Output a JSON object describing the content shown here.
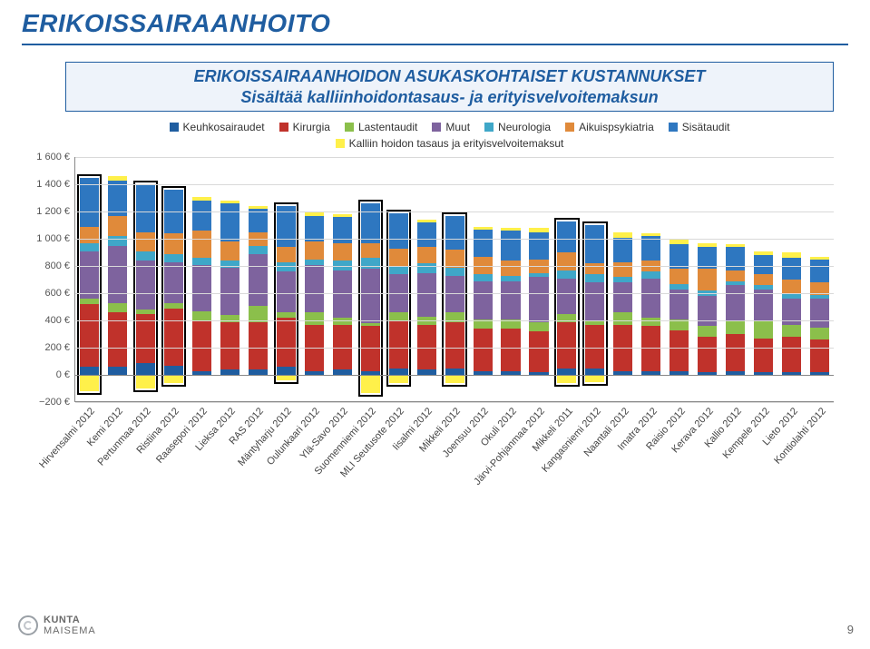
{
  "page": {
    "title": "ERIKOISSAIRAANHOITO",
    "number": "9",
    "brand_top": "KUNTA",
    "brand_bottom": "MAISEMA"
  },
  "chart": {
    "type": "stacked-bar",
    "title_line1": "ERIKOISSAIRAANHOIDON ASUKASKOHTAISET KUSTANNUKSET",
    "title_line2": "Sisältää kalliinhoidontasaus- ja erityisvelvoitemaksun",
    "ymin": -200,
    "ymax": 1600,
    "ytick_step": 200,
    "ysuffix": " €",
    "grid_color": "#d9d9d9",
    "background_color": "#ffffff",
    "legend": [
      {
        "key": "keuhko",
        "label": "Keuhkosairaudet",
        "color": "#1f5da0"
      },
      {
        "key": "kirurgia",
        "label": "Kirurgia",
        "color": "#c0322b"
      },
      {
        "key": "lasten",
        "label": "Lastentaudit",
        "color": "#8bbf4b"
      },
      {
        "key": "muut",
        "label": "Muut",
        "color": "#7e639e"
      },
      {
        "key": "neuro",
        "label": "Neurologia",
        "color": "#3fa7c8"
      },
      {
        "key": "aikuis",
        "label": "Aikuispsykiatria",
        "color": "#e08a3a"
      },
      {
        "key": "sisa",
        "label": "Sisätaudit",
        "color": "#2e77c0"
      },
      {
        "key": "tasaus",
        "label": "Kalliin hoidon tasaus ja erityisvelvoitemaksut",
        "color": "#fff04a"
      }
    ],
    "categories": [
      {
        "name": "Hirvensalmi 2012",
        "keuhko": 60,
        "kirurgia": 460,
        "lasten": 40,
        "muut": 350,
        "neuro": 60,
        "aikuis": 120,
        "sisa": 360,
        "tasaus": -120
      },
      {
        "name": "Kemi 2012",
        "keuhko": 60,
        "kirurgia": 400,
        "lasten": 70,
        "muut": 420,
        "neuro": 70,
        "aikuis": 150,
        "sisa": 260,
        "tasaus": 30
      },
      {
        "name": "Pertunmaa 2012",
        "keuhko": 90,
        "kirurgia": 360,
        "lasten": 30,
        "muut": 360,
        "neuro": 70,
        "aikuis": 140,
        "sisa": 350,
        "tasaus": -100
      },
      {
        "name": "Ristiina 2012",
        "keuhko": 70,
        "kirurgia": 420,
        "lasten": 40,
        "muut": 300,
        "neuro": 60,
        "aikuis": 150,
        "sisa": 320,
        "tasaus": -60
      },
      {
        "name": "Raasepori 2012",
        "keuhko": 30,
        "kirurgia": 370,
        "lasten": 70,
        "muut": 340,
        "neuro": 50,
        "aikuis": 200,
        "sisa": 220,
        "tasaus": 30
      },
      {
        "name": "Lieksa 2012",
        "keuhko": 40,
        "kirurgia": 350,
        "lasten": 50,
        "muut": 350,
        "neuro": 50,
        "aikuis": 140,
        "sisa": 280,
        "tasaus": 20
      },
      {
        "name": "RAS 2012",
        "keuhko": 40,
        "kirurgia": 350,
        "lasten": 120,
        "muut": 380,
        "neuro": 60,
        "aikuis": 100,
        "sisa": 170,
        "tasaus": 20
      },
      {
        "name": "Mäntyharju 2012",
        "keuhko": 60,
        "kirurgia": 360,
        "lasten": 40,
        "muut": 300,
        "neuro": 70,
        "aikuis": 110,
        "sisa": 300,
        "tasaus": -40
      },
      {
        "name": "Oulunkaari 2012",
        "keuhko": 30,
        "kirurgia": 340,
        "lasten": 90,
        "muut": 350,
        "neuro": 40,
        "aikuis": 130,
        "sisa": 190,
        "tasaus": 30
      },
      {
        "name": "Ylä-Savo 2012",
        "keuhko": 40,
        "kirurgia": 330,
        "lasten": 50,
        "muut": 350,
        "neuro": 70,
        "aikuis": 130,
        "sisa": 190,
        "tasaus": 20
      },
      {
        "name": "Suomenniemi 2012",
        "keuhko": 30,
        "kirurgia": 330,
        "lasten": 20,
        "muut": 400,
        "neuro": 80,
        "aikuis": 110,
        "sisa": 290,
        "tasaus": -130
      },
      {
        "name": "MLI Seutusote 2012",
        "keuhko": 50,
        "kirurgia": 350,
        "lasten": 60,
        "muut": 280,
        "neuro": 60,
        "aikuis": 130,
        "sisa": 260,
        "tasaus": -60
      },
      {
        "name": "Iisalmi 2012",
        "keuhko": 40,
        "kirurgia": 330,
        "lasten": 60,
        "muut": 320,
        "neuro": 70,
        "aikuis": 120,
        "sisa": 180,
        "tasaus": 20
      },
      {
        "name": "Mikkeli 2012",
        "keuhko": 50,
        "kirurgia": 340,
        "lasten": 70,
        "muut": 270,
        "neuro": 60,
        "aikuis": 130,
        "sisa": 250,
        "tasaus": -60
      },
      {
        "name": "Joensuu 2012",
        "keuhko": 30,
        "kirurgia": 310,
        "lasten": 70,
        "muut": 280,
        "neuro": 50,
        "aikuis": 130,
        "sisa": 200,
        "tasaus": 20
      },
      {
        "name": "Okuli 2012",
        "keuhko": 30,
        "kirurgia": 310,
        "lasten": 70,
        "muut": 280,
        "neuro": 40,
        "aikuis": 110,
        "sisa": 220,
        "tasaus": 20
      },
      {
        "name": "Järvi-Pohjanmaa 2012",
        "keuhko": 20,
        "kirurgia": 300,
        "lasten": 70,
        "muut": 330,
        "neuro": 30,
        "aikuis": 100,
        "sisa": 200,
        "tasaus": 30
      },
      {
        "name": "Mikkeli 2011",
        "keuhko": 50,
        "kirurgia": 340,
        "lasten": 60,
        "muut": 260,
        "neuro": 60,
        "aikuis": 130,
        "sisa": 230,
        "tasaus": -60
      },
      {
        "name": "Kangasniemi 2012",
        "keuhko": 50,
        "kirurgia": 320,
        "lasten": 30,
        "muut": 280,
        "neuro": 60,
        "aikuis": 80,
        "sisa": 280,
        "tasaus": -50
      },
      {
        "name": "Naantali 2012",
        "keuhko": 30,
        "kirurgia": 340,
        "lasten": 90,
        "muut": 220,
        "neuro": 40,
        "aikuis": 110,
        "sisa": 180,
        "tasaus": 40
      },
      {
        "name": "Imatra 2012",
        "keuhko": 30,
        "kirurgia": 330,
        "lasten": 60,
        "muut": 290,
        "neuro": 50,
        "aikuis": 80,
        "sisa": 180,
        "tasaus": 20
      },
      {
        "name": "Raisio 2012",
        "keuhko": 30,
        "kirurgia": 300,
        "lasten": 80,
        "muut": 220,
        "neuro": 40,
        "aikuis": 110,
        "sisa": 180,
        "tasaus": 40
      },
      {
        "name": "Kerava 2012",
        "keuhko": 20,
        "kirurgia": 260,
        "lasten": 80,
        "muut": 220,
        "neuro": 40,
        "aikuis": 160,
        "sisa": 160,
        "tasaus": 30
      },
      {
        "name": "Kallio 2012",
        "keuhko": 30,
        "kirurgia": 270,
        "lasten": 100,
        "muut": 260,
        "neuro": 30,
        "aikuis": 80,
        "sisa": 170,
        "tasaus": 20
      },
      {
        "name": "Kempele 2012",
        "keuhko": 20,
        "kirurgia": 250,
        "lasten": 130,
        "muut": 230,
        "neuro": 30,
        "aikuis": 80,
        "sisa": 140,
        "tasaus": 30
      },
      {
        "name": "Lieto 2012",
        "keuhko": 20,
        "kirurgia": 260,
        "lasten": 90,
        "muut": 190,
        "neuro": 40,
        "aikuis": 100,
        "sisa": 160,
        "tasaus": 40
      },
      {
        "name": "Kontiolahti 2012",
        "keuhko": 20,
        "kirurgia": 240,
        "lasten": 90,
        "muut": 210,
        "neuro": 30,
        "aikuis": 90,
        "sisa": 170,
        "tasaus": 20
      }
    ],
    "highlight_categories": [
      "Hirvensalmi 2012",
      "Pertunmaa 2012",
      "Ristiina 2012",
      "Mäntyharju 2012",
      "Suomenniemi 2012",
      "MLI Seutusote 2012",
      "Mikkeli 2012",
      "Mikkeli 2011",
      "Kangasniemi 2012"
    ],
    "label_fontsize": 11,
    "label_rotation_deg": -48
  }
}
